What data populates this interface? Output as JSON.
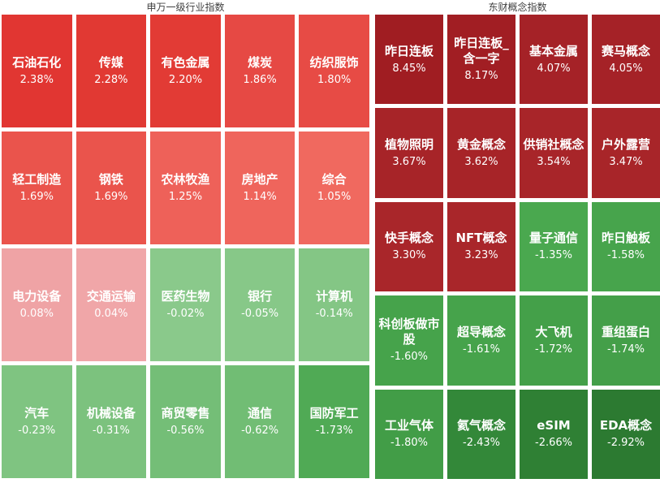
{
  "chart_data": [
    {
      "type": "heatmap",
      "title": "申万一级行业指数",
      "columns": 5,
      "rows": 4,
      "legend": false,
      "value_unit": "%",
      "cells": [
        {
          "name": "石油石化",
          "value": 2.38,
          "change": "2.38%",
          "color": "#e13632"
        },
        {
          "name": "传媒",
          "value": 2.28,
          "change": "2.28%",
          "color": "#e13933"
        },
        {
          "name": "有色金属",
          "value": 2.2,
          "change": "2.20%",
          "color": "#e23b35"
        },
        {
          "name": "煤炭",
          "value": 1.86,
          "change": "1.86%",
          "color": "#e64944"
        },
        {
          "name": "纺织服饰",
          "value": 1.8,
          "change": "1.80%",
          "color": "#e74b45"
        },
        {
          "name": "轻工制造",
          "value": 1.69,
          "change": "1.69%",
          "color": "#ea544c"
        },
        {
          "name": "钢铁",
          "value": 1.69,
          "change": "1.69%",
          "color": "#ea544c"
        },
        {
          "name": "农林牧渔",
          "value": 1.25,
          "change": "1.25%",
          "color": "#ee6159"
        },
        {
          "name": "房地产",
          "value": 1.14,
          "change": "1.14%",
          "color": "#ef655c"
        },
        {
          "name": "综合",
          "value": 1.05,
          "change": "1.05%",
          "color": "#f0695f"
        },
        {
          "name": "电力设备",
          "value": 0.08,
          "change": "0.08%",
          "color": "#efa3a5"
        },
        {
          "name": "交通运输",
          "value": 0.04,
          "change": "0.04%",
          "color": "#f0a6a8"
        },
        {
          "name": "医药生物",
          "value": -0.02,
          "change": "-0.02%",
          "color": "#8ac98b"
        },
        {
          "name": "银行",
          "value": -0.05,
          "change": "-0.05%",
          "color": "#87c888"
        },
        {
          "name": "计算机",
          "value": -0.14,
          "change": "-0.14%",
          "color": "#84c685"
        },
        {
          "name": "汽车",
          "value": -0.23,
          "change": "-0.23%",
          "color": "#7fc481"
        },
        {
          "name": "机械设备",
          "value": -0.31,
          "change": "-0.31%",
          "color": "#7cc27e"
        },
        {
          "name": "商贸零售",
          "value": -0.56,
          "change": "-0.56%",
          "color": "#74be77"
        },
        {
          "name": "通信",
          "value": -0.62,
          "change": "-0.62%",
          "color": "#71bd74"
        },
        {
          "name": "国防军工",
          "value": -1.73,
          "change": "-1.73%",
          "color": "#50aa55"
        }
      ]
    },
    {
      "type": "heatmap",
      "title": "东财概念指数",
      "columns": 4,
      "rows": 5,
      "legend": false,
      "value_unit": "%",
      "cells": [
        {
          "name": "昨日连板",
          "value": 8.45,
          "change": "8.45%",
          "color": "#a01d22"
        },
        {
          "name": "昨日连板_含一字",
          "value": 8.17,
          "change": "8.17%",
          "color": "#a11e23"
        },
        {
          "name": "基本金属",
          "value": 4.07,
          "change": "4.07%",
          "color": "#a52227"
        },
        {
          "name": "赛马概念",
          "value": 4.05,
          "change": "4.05%",
          "color": "#a52227"
        },
        {
          "name": "植物照明",
          "value": 3.67,
          "change": "3.67%",
          "color": "#a72428"
        },
        {
          "name": "黄金概念",
          "value": 3.62,
          "change": "3.62%",
          "color": "#a72428"
        },
        {
          "name": "供销社概念",
          "value": 3.54,
          "change": "3.54%",
          "color": "#a82529"
        },
        {
          "name": "户外露营",
          "value": 3.47,
          "change": "3.47%",
          "color": "#a82529"
        },
        {
          "name": "快手概念",
          "value": 3.3,
          "change": "3.30%",
          "color": "#a9262a"
        },
        {
          "name": "NFT概念",
          "value": 3.23,
          "change": "3.23%",
          "color": "#a9262a"
        },
        {
          "name": "量子通信",
          "value": -1.35,
          "change": "-1.35%",
          "color": "#4aa84f"
        },
        {
          "name": "昨日触板",
          "value": -1.58,
          "change": "-1.58%",
          "color": "#47a44c"
        },
        {
          "name": "科创板做市股",
          "value": -1.6,
          "change": "-1.60%",
          "color": "#46a34b"
        },
        {
          "name": "超导概念",
          "value": -1.61,
          "change": "-1.61%",
          "color": "#46a34b"
        },
        {
          "name": "大飞机",
          "value": -1.72,
          "change": "-1.72%",
          "color": "#44a049"
        },
        {
          "name": "重组蛋白",
          "value": -1.74,
          "change": "-1.74%",
          "color": "#449f49"
        },
        {
          "name": "工业气体",
          "value": -1.8,
          "change": "-1.80%",
          "color": "#429d47"
        },
        {
          "name": "氦气概念",
          "value": -2.43,
          "change": "-2.43%",
          "color": "#338839"
        },
        {
          "name": "eSIM",
          "value": -2.66,
          "change": "-2.66%",
          "color": "#2f8034"
        },
        {
          "name": "EDA概念",
          "value": -2.92,
          "change": "-2.92%",
          "color": "#2c7a31"
        }
      ]
    }
  ]
}
